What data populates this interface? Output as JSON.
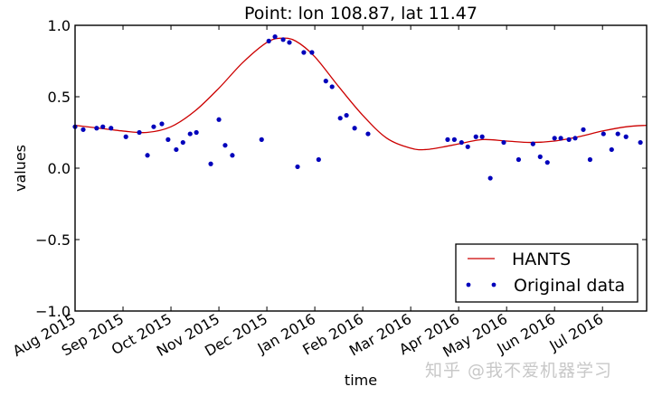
{
  "chart_data": {
    "type": "line",
    "title": "Point: lon 108.87, lat 11.47",
    "xlabel": "time",
    "ylabel": "values",
    "ylim": [
      -1.0,
      1.0
    ],
    "yticks": [
      -1.0,
      -0.5,
      0.0,
      0.5,
      1.0
    ],
    "ytick_labels": [
      "−1.0",
      "−0.5",
      "0.0",
      "0.5",
      "1.0"
    ],
    "categories": [
      "Aug 2015",
      "Sep 2015",
      "Oct 2015",
      "Nov 2015",
      "Dec 2015",
      "Jan 2016",
      "Feb 2016",
      "Mar 2016",
      "Apr 2016",
      "May 2016",
      "Jun 2016",
      "Jul 2016"
    ],
    "xlim_months": [
      0,
      11.92
    ],
    "grid": false,
    "legend_position": "lower right",
    "series": [
      {
        "name": "HANTS",
        "kind": "line",
        "color": "#cc0000",
        "points": [
          [
            0,
            0.3
          ],
          [
            0.5,
            0.28
          ],
          [
            1,
            0.26
          ],
          [
            1.5,
            0.25
          ],
          [
            2,
            0.29
          ],
          [
            2.5,
            0.4
          ],
          [
            3,
            0.56
          ],
          [
            3.5,
            0.74
          ],
          [
            4,
            0.88
          ],
          [
            4.3,
            0.91
          ],
          [
            4.6,
            0.89
          ],
          [
            5,
            0.78
          ],
          [
            5.5,
            0.57
          ],
          [
            6,
            0.37
          ],
          [
            6.5,
            0.21
          ],
          [
            7,
            0.14
          ],
          [
            7.3,
            0.13
          ],
          [
            7.7,
            0.15
          ],
          [
            8,
            0.17
          ],
          [
            8.5,
            0.2
          ],
          [
            9,
            0.19
          ],
          [
            9.5,
            0.18
          ],
          [
            10,
            0.19
          ],
          [
            10.5,
            0.22
          ],
          [
            11,
            0.26
          ],
          [
            11.5,
            0.29
          ],
          [
            11.92,
            0.3
          ]
        ]
      },
      {
        "name": "Original data",
        "kind": "scatter",
        "color": "#0000bb",
        "points": [
          [
            0,
            0.29
          ],
          [
            0.17,
            0.27
          ],
          [
            0.45,
            0.28
          ],
          [
            0.58,
            0.29
          ],
          [
            0.75,
            0.28
          ],
          [
            1.06,
            0.22
          ],
          [
            1.34,
            0.25
          ],
          [
            1.51,
            0.09
          ],
          [
            1.64,
            0.29
          ],
          [
            1.81,
            0.31
          ],
          [
            1.94,
            0.2
          ],
          [
            2.11,
            0.13
          ],
          [
            2.25,
            0.18
          ],
          [
            2.4,
            0.24
          ],
          [
            2.53,
            0.25
          ],
          [
            2.83,
            0.03
          ],
          [
            3.0,
            0.34
          ],
          [
            3.13,
            0.16
          ],
          [
            3.28,
            0.09
          ],
          [
            3.89,
            0.2
          ],
          [
            4.04,
            0.89
          ],
          [
            4.17,
            0.92
          ],
          [
            4.34,
            0.9
          ],
          [
            4.47,
            0.88
          ],
          [
            4.64,
            0.01
          ],
          [
            4.77,
            0.81
          ],
          [
            4.94,
            0.81
          ],
          [
            5.08,
            0.06
          ],
          [
            5.23,
            0.61
          ],
          [
            5.36,
            0.57
          ],
          [
            5.53,
            0.35
          ],
          [
            5.66,
            0.37
          ],
          [
            5.83,
            0.28
          ],
          [
            6.11,
            0.24
          ],
          [
            7.77,
            0.2
          ],
          [
            7.91,
            0.2
          ],
          [
            8.06,
            0.18
          ],
          [
            8.19,
            0.15
          ],
          [
            8.36,
            0.22
          ],
          [
            8.49,
            0.22
          ],
          [
            8.66,
            -0.07
          ],
          [
            8.94,
            0.18
          ],
          [
            9.25,
            0.06
          ],
          [
            9.55,
            0.17
          ],
          [
            9.7,
            0.08
          ],
          [
            9.85,
            0.04
          ],
          [
            10.0,
            0.21
          ],
          [
            10.13,
            0.21
          ],
          [
            10.3,
            0.2
          ],
          [
            10.43,
            0.21
          ],
          [
            10.6,
            0.27
          ],
          [
            10.74,
            0.06
          ],
          [
            11.02,
            0.24
          ],
          [
            11.19,
            0.13
          ],
          [
            11.32,
            0.24
          ],
          [
            11.49,
            0.22
          ],
          [
            11.79,
            0.18
          ]
        ]
      }
    ]
  },
  "watermark": "知乎 @我不爱机器学习"
}
